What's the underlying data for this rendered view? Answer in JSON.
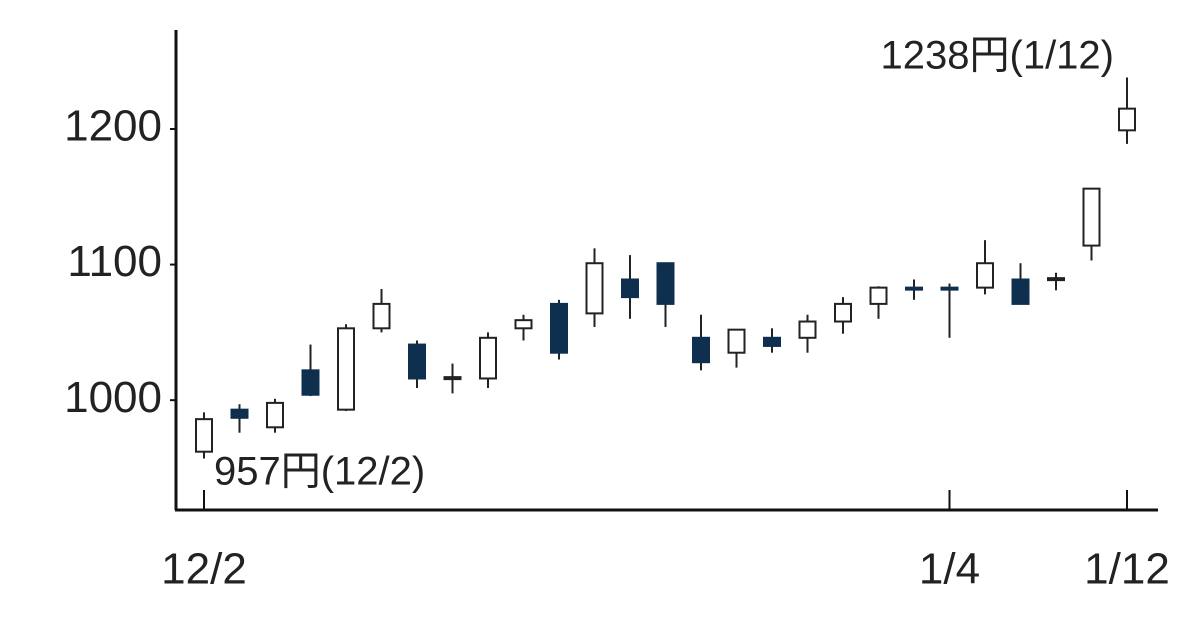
{
  "chart_data": {
    "type": "candlestick",
    "categories": [
      "12/2",
      null,
      null,
      null,
      null,
      null,
      null,
      null,
      null,
      null,
      null,
      null,
      null,
      null,
      null,
      null,
      null,
      null,
      null,
      null,
      null,
      "1/4",
      null,
      null,
      null,
      null,
      "1/12"
    ],
    "open": [
      962,
      993,
      980,
      1022,
      993,
      1053,
      1041,
      1016,
      1016,
      1053,
      1071,
      1064,
      1089,
      1101,
      1046,
      1035,
      1046,
      1046,
      1058,
      1071,
      1083,
      1083,
      1083,
      1089,
      1089,
      1114,
      1199
    ],
    "high": [
      991,
      997,
      1001,
      1041,
      1056,
      1082,
      1044,
      1027,
      1050,
      1063,
      1074,
      1112,
      1107,
      1101,
      1063,
      1052,
      1053,
      1063,
      1076,
      1084,
      1089,
      1086,
      1118,
      1101,
      1094,
      1156,
      1238
    ],
    "low": [
      957,
      976,
      976,
      1003,
      992,
      1050,
      1009,
      1005,
      1009,
      1044,
      1030,
      1054,
      1060,
      1054,
      1022,
      1024,
      1035,
      1035,
      1049,
      1060,
      1074,
      1046,
      1078,
      1071,
      1081,
      1103,
      1189
    ],
    "close": [
      986,
      987,
      998,
      1004,
      1053,
      1071,
      1016,
      1017,
      1046,
      1059,
      1035,
      1101,
      1076,
      1071,
      1028,
      1052,
      1040,
      1058,
      1071,
      1083,
      1082,
      1082,
      1101,
      1071,
      1090,
      1156,
      1215
    ],
    "up_color": "#ffffff",
    "down_color": "#0f2f4f",
    "ylim": [
      919,
      1273
    ],
    "yticks": [
      1000,
      1100,
      1200
    ],
    "annotations": [
      "1238円(1/12)",
      "957円(12/2)"
    ]
  }
}
